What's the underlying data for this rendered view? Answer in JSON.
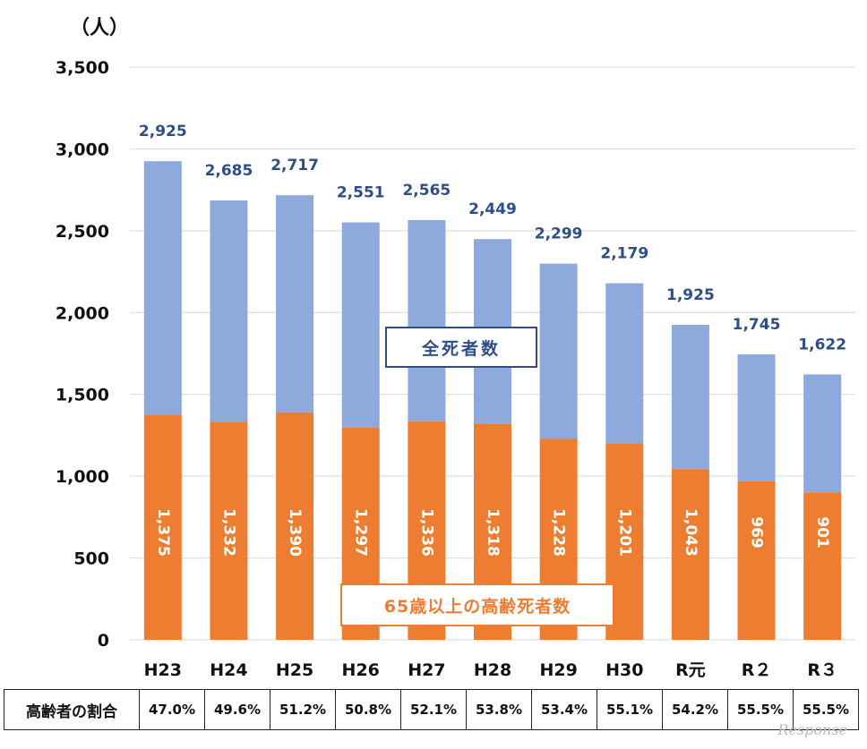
{
  "chart_data": {
    "type": "bar",
    "stacked": true,
    "unit_label": "（人）",
    "categories": [
      "H23",
      "H24",
      "H25",
      "H26",
      "H27",
      "H28",
      "H29",
      "H30",
      "R元",
      "R２",
      "R３"
    ],
    "totals": [
      2925,
      2685,
      2717,
      2551,
      2565,
      2449,
      2299,
      2179,
      1925,
      1745,
      1622
    ],
    "total_labels": [
      "2,925",
      "2,685",
      "2,717",
      "2,551",
      "2,565",
      "2,449",
      "2,299",
      "2,179",
      "1,925",
      "1,745",
      "1,622"
    ],
    "series": [
      {
        "name": "65歳以上の高齢死者数",
        "values": [
          1375,
          1332,
          1390,
          1297,
          1336,
          1318,
          1228,
          1201,
          1043,
          969,
          901
        ],
        "labels": [
          "1,375",
          "1,332",
          "1,390",
          "1,297",
          "1,336",
          "1,318",
          "1,228",
          "1,201",
          "1,043",
          "969",
          "901"
        ],
        "color": "#ED7D31"
      },
      {
        "name": "全死者数",
        "values": [
          1550,
          1353,
          1327,
          1254,
          1229,
          1131,
          1071,
          978,
          882,
          776,
          721
        ],
        "color": "#8EA9DB"
      }
    ],
    "ylim": [
      0,
      3500
    ],
    "yticks": [
      0,
      500,
      1000,
      1500,
      2000,
      2500,
      3000,
      3500
    ],
    "ytick_labels": [
      "0",
      "500",
      "1,000",
      "1,500",
      "2,000",
      "2,500",
      "3,000",
      "3,500"
    ],
    "grid": true
  },
  "legend": {
    "all_deaths": "全死者数",
    "elderly_deaths": "65歳以上の高齢死者数"
  },
  "ratio_table": {
    "header": "高齢者の割合",
    "values": [
      "47.0%",
      "49.6%",
      "51.2%",
      "50.8%",
      "52.1%",
      "53.8%",
      "53.4%",
      "55.1%",
      "54.2%",
      "55.5%",
      "55.5%"
    ]
  },
  "watermark": "Response"
}
